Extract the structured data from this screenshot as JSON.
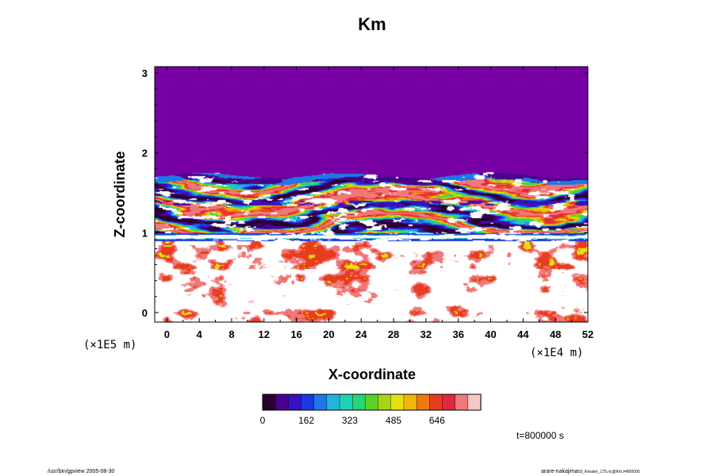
{
  "chart_data": {
    "type": "heatmap",
    "title": "Km",
    "xlabel": "X-coordinate",
    "ylabel": "Z-coordinate",
    "x_scale_label": "(×1E4 m)",
    "y_scale_label": "(×1E5 m)",
    "xlim": [
      -1.5,
      52
    ],
    "ylim": [
      -0.12,
      3.08
    ],
    "x_ticks": [
      "0",
      "4",
      "8",
      "12",
      "16",
      "20",
      "24",
      "28",
      "32",
      "36",
      "40",
      "44",
      "48",
      "52"
    ],
    "y_ticks": [
      "0",
      "1",
      "2",
      "3"
    ],
    "field": "Km",
    "colorbar": {
      "min": 0,
      "max": 808,
      "ticks": [
        "0",
        "162",
        "323",
        "485",
        "646"
      ],
      "colors": [
        "#2a0030",
        "#4b0090",
        "#3a10c0",
        "#1a3ae0",
        "#1e78e6",
        "#22b4dc",
        "#1ed2b4",
        "#2ad278",
        "#5ad228",
        "#a8d414",
        "#e6e010",
        "#f0b40a",
        "#f07810",
        "#e83c1e",
        "#e0283c",
        "#f07878",
        "#f8c8c8"
      ]
    },
    "regions": [
      {
        "z_range": [
          1.75,
          3.08
        ],
        "value": 0,
        "description_value": "uniform Km = 0"
      },
      {
        "z_range": [
          1.0,
          1.75
        ],
        "value_range": [
          0,
          808
        ]
      },
      {
        "z_range": [
          -0.12,
          0.95
        ],
        "value_range": [
          0,
          700
        ]
      }
    ],
    "time_label": "t=800000 s"
  },
  "footer": {
    "left": "/usr/bin/gpview 2005-08-30",
    "right_main": "arare-nakajima",
    "right_small": "03_Kessler_175.nc@Km,t=800000"
  }
}
